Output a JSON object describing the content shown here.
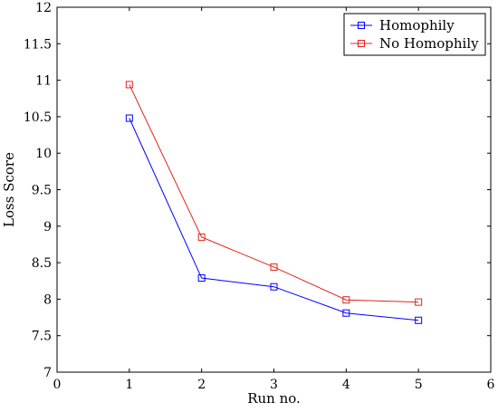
{
  "chart_data": {
    "type": "line",
    "title": "",
    "xlabel": "Run no.",
    "ylabel": "Loss Score",
    "xlim": [
      0,
      6
    ],
    "ylim": [
      7,
      12
    ],
    "xticks": [
      0,
      1,
      2,
      3,
      4,
      5,
      6
    ],
    "yticks": [
      7,
      7.5,
      8,
      8.5,
      9,
      9.5,
      10,
      10.5,
      11,
      11.5,
      12
    ],
    "xtick_labels": [
      "0",
      "1",
      "2",
      "3",
      "4",
      "5",
      "6"
    ],
    "ytick_labels": [
      "7",
      "7.5",
      "8",
      "8.5",
      "9",
      "9.5",
      "10",
      "10.5",
      "11",
      "11.5",
      "12"
    ],
    "grid": false,
    "legend_position": "top-right",
    "x": [
      1,
      2,
      3,
      4,
      5
    ],
    "series": [
      {
        "name": "Homophily",
        "color": "#0000ff",
        "marker": "square",
        "values": [
          10.48,
          8.29,
          8.17,
          7.81,
          7.71
        ]
      },
      {
        "name": "No Homophily",
        "color": "#e0241c",
        "marker": "square",
        "values": [
          10.94,
          8.85,
          8.44,
          7.99,
          7.96
        ]
      }
    ]
  }
}
